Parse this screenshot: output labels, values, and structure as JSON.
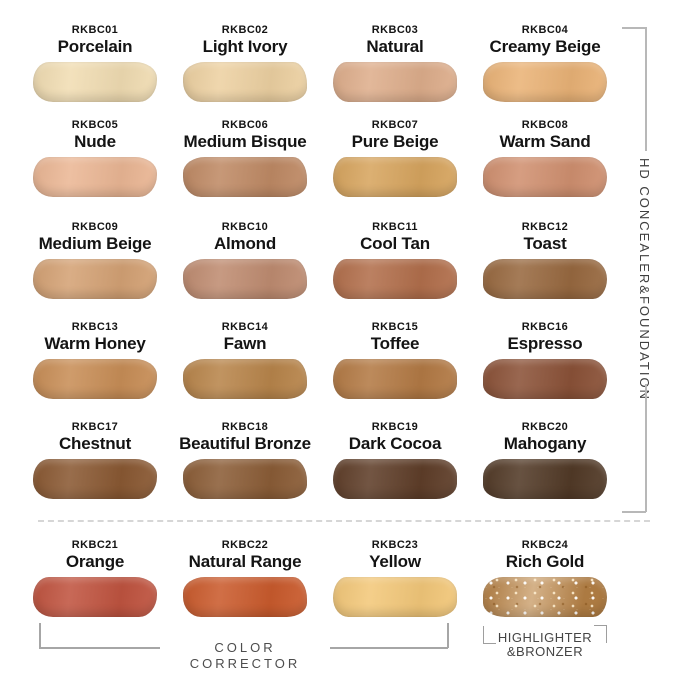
{
  "page": {
    "background": "#ffffff"
  },
  "groups": {
    "right_label": "HD CONCEALER&FOUNDATION",
    "bottom_left_label": "COLOR CORRECTOR",
    "bottom_right_label_line1": "HIGHLIGHTER",
    "bottom_right_label_line2": "&BRONZER"
  },
  "shades": [
    {
      "code": "RKBC01",
      "name": "Porcelain",
      "color": "#F1DDB3"
    },
    {
      "code": "RKBC02",
      "name": "Light Ivory",
      "color": "#EDD1A2"
    },
    {
      "code": "RKBC03",
      "name": "Natural",
      "color": "#DEAE8C"
    },
    {
      "code": "RKBC04",
      "name": "Creamy Beige",
      "color": "#EAB377"
    },
    {
      "code": "RKBC05",
      "name": "Nude",
      "color": "#EBB795"
    },
    {
      "code": "RKBC06",
      "name": "Medium Bisque",
      "color": "#BF8A65"
    },
    {
      "code": "RKBC07",
      "name": "Pure Beige",
      "color": "#D7A55F"
    },
    {
      "code": "RKBC08",
      "name": "Warm Sand",
      "color": "#D09070"
    },
    {
      "code": "RKBC09",
      "name": "Medium Beige",
      "color": "#D4A275"
    },
    {
      "code": "RKBC10",
      "name": "Almond",
      "color": "#BF8C71"
    },
    {
      "code": "RKBC11",
      "name": "Cool Tan",
      "color": "#B26F4C"
    },
    {
      "code": "RKBC12",
      "name": "Toast",
      "color": "#986940"
    },
    {
      "code": "RKBC13",
      "name": "Warm Honey",
      "color": "#C88E57"
    },
    {
      "code": "RKBC14",
      "name": "Fawn",
      "color": "#B8854B"
    },
    {
      "code": "RKBC15",
      "name": "Toffee",
      "color": "#B37A45"
    },
    {
      "code": "RKBC16",
      "name": "Espresso",
      "color": "#8B5238"
    },
    {
      "code": "RKBC17",
      "name": "Chestnut",
      "color": "#8A5933"
    },
    {
      "code": "RKBC18",
      "name": "Beautiful Bronze",
      "color": "#8B5D37"
    },
    {
      "code": "RKBC19",
      "name": "Dark Cocoa",
      "color": "#5F3E29"
    },
    {
      "code": "RKBC20",
      "name": "Mahogany",
      "color": "#523A27"
    },
    {
      "code": "RKBC21",
      "name": "Orange",
      "color": "#C05440"
    },
    {
      "code": "RKBC22",
      "name": "Natural Range",
      "color": "#CA5B2D"
    },
    {
      "code": "RKBC23",
      "name": "Yellow",
      "color": "#F3C87A"
    },
    {
      "code": "RKBC24",
      "name": "Rich Gold",
      "color": "#C29055",
      "sparkle": true
    }
  ]
}
